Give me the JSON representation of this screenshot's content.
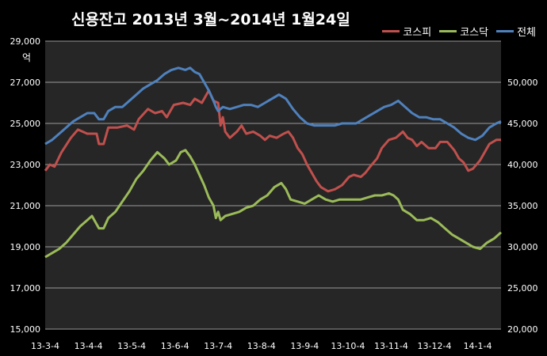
{
  "title": "신용잔고 2013년 3월~2014년 1월24일",
  "unit_label": "억",
  "legend": [
    {
      "name": "코스피",
      "color": "#c0504d"
    },
    {
      "name": "코스닥",
      "color": "#9bbb59"
    },
    {
      "name": "전체",
      "color": "#4f81bd"
    }
  ],
  "chart_data": {
    "type": "line",
    "title": "신용잔고 2013년 3월~2014년 1월24일",
    "x_tick_labels": [
      "13-3-4",
      "13-4-4",
      "13-5-4",
      "13-6-4",
      "13-7-4",
      "13-8-4",
      "13-9-4",
      "13-10-4",
      "13-11-4",
      "13-12-4",
      "14-1-4"
    ],
    "y_left": {
      "unit": "억",
      "range": [
        15000,
        29000
      ],
      "ticks": [
        "15,000",
        "17,000",
        "19,000",
        "21,000",
        "23,000",
        "25,000",
        "27,000",
        "29,000"
      ]
    },
    "y_right": {
      "range": [
        20000,
        55000
      ],
      "ticks": [
        "20,000",
        "25,000",
        "30,000",
        "35,000",
        "40,000",
        "45,000",
        "50,000"
      ]
    },
    "grid": true,
    "legend_position": "top-right",
    "series": [
      {
        "name": "코스피",
        "axis": "left",
        "color": "#c0504d",
        "points": [
          [
            0,
            22700
          ],
          [
            2,
            23000
          ],
          [
            4,
            22900
          ],
          [
            7,
            23600
          ],
          [
            11,
            24300
          ],
          [
            14,
            24700
          ],
          [
            18,
            24500
          ],
          [
            22,
            24500
          ],
          [
            23,
            24000
          ],
          [
            25,
            24000
          ],
          [
            27,
            24800
          ],
          [
            31,
            24800
          ],
          [
            35,
            24900
          ],
          [
            38,
            24700
          ],
          [
            40,
            25200
          ],
          [
            44,
            25700
          ],
          [
            47,
            25500
          ],
          [
            50,
            25600
          ],
          [
            52,
            25300
          ],
          [
            55,
            25900
          ],
          [
            59,
            26000
          ],
          [
            62,
            25900
          ],
          [
            64,
            26200
          ],
          [
            67,
            26000
          ],
          [
            70,
            26600
          ],
          [
            72,
            26100
          ],
          [
            74,
            26000
          ],
          [
            75,
            24900
          ],
          [
            76,
            25300
          ],
          [
            77,
            24600
          ],
          [
            79,
            24300
          ],
          [
            82,
            24600
          ],
          [
            84,
            24900
          ],
          [
            86,
            24500
          ],
          [
            89,
            24600
          ],
          [
            92,
            24400
          ],
          [
            94,
            24200
          ],
          [
            96,
            24400
          ],
          [
            99,
            24300
          ],
          [
            102,
            24500
          ],
          [
            104,
            24600
          ],
          [
            106,
            24300
          ],
          [
            108,
            23800
          ],
          [
            110,
            23500
          ],
          [
            112,
            23000
          ],
          [
            114,
            22600
          ],
          [
            116,
            22200
          ],
          [
            118,
            21900
          ],
          [
            121,
            21700
          ],
          [
            124,
            21800
          ],
          [
            127,
            22000
          ],
          [
            130,
            22400
          ],
          [
            132,
            22500
          ],
          [
            135,
            22400
          ],
          [
            137,
            22600
          ],
          [
            139,
            22900
          ],
          [
            142,
            23300
          ],
          [
            144,
            23800
          ],
          [
            147,
            24200
          ],
          [
            150,
            24300
          ],
          [
            153,
            24600
          ],
          [
            155,
            24300
          ],
          [
            157,
            24200
          ],
          [
            159,
            23900
          ],
          [
            161,
            24100
          ],
          [
            164,
            23800
          ],
          [
            167,
            23800
          ],
          [
            169,
            24100
          ],
          [
            172,
            24100
          ],
          [
            175,
            23700
          ],
          [
            177,
            23300
          ],
          [
            179,
            23100
          ],
          [
            181,
            22700
          ],
          [
            183,
            22800
          ],
          [
            186,
            23200
          ],
          [
            188,
            23600
          ],
          [
            190,
            24000
          ],
          [
            193,
            24200
          ],
          [
            195,
            24200
          ]
        ]
      },
      {
        "name": "코스닥",
        "axis": "left",
        "color": "#9bbb59",
        "points": [
          [
            0,
            18500
          ],
          [
            3,
            18700
          ],
          [
            6,
            18900
          ],
          [
            9,
            19200
          ],
          [
            12,
            19600
          ],
          [
            15,
            20000
          ],
          [
            18,
            20300
          ],
          [
            20,
            20500
          ],
          [
            23,
            19900
          ],
          [
            25,
            19900
          ],
          [
            27,
            20400
          ],
          [
            30,
            20700
          ],
          [
            33,
            21200
          ],
          [
            36,
            21700
          ],
          [
            39,
            22300
          ],
          [
            42,
            22700
          ],
          [
            45,
            23200
          ],
          [
            48,
            23600
          ],
          [
            51,
            23300
          ],
          [
            53,
            23000
          ],
          [
            56,
            23200
          ],
          [
            58,
            23600
          ],
          [
            60,
            23700
          ],
          [
            62,
            23400
          ],
          [
            64,
            23000
          ],
          [
            66,
            22500
          ],
          [
            68,
            22000
          ],
          [
            70,
            21400
          ],
          [
            72,
            21000
          ],
          [
            73,
            20400
          ],
          [
            74,
            20700
          ],
          [
            75,
            20300
          ],
          [
            77,
            20500
          ],
          [
            80,
            20600
          ],
          [
            83,
            20700
          ],
          [
            86,
            20900
          ],
          [
            89,
            21000
          ],
          [
            92,
            21300
          ],
          [
            95,
            21500
          ],
          [
            98,
            21900
          ],
          [
            101,
            22100
          ],
          [
            103,
            21800
          ],
          [
            105,
            21300
          ],
          [
            108,
            21200
          ],
          [
            111,
            21100
          ],
          [
            114,
            21300
          ],
          [
            117,
            21500
          ],
          [
            120,
            21300
          ],
          [
            123,
            21200
          ],
          [
            126,
            21300
          ],
          [
            129,
            21300
          ],
          [
            132,
            21300
          ],
          [
            135,
            21300
          ],
          [
            138,
            21400
          ],
          [
            141,
            21500
          ],
          [
            144,
            21500
          ],
          [
            147,
            21600
          ],
          [
            149,
            21500
          ],
          [
            151,
            21300
          ],
          [
            153,
            20800
          ],
          [
            156,
            20600
          ],
          [
            159,
            20300
          ],
          [
            162,
            20300
          ],
          [
            165,
            20400
          ],
          [
            168,
            20200
          ],
          [
            171,
            19900
          ],
          [
            174,
            19600
          ],
          [
            177,
            19400
          ],
          [
            180,
            19200
          ],
          [
            183,
            19000
          ],
          [
            186,
            18900
          ],
          [
            189,
            19200
          ],
          [
            192,
            19400
          ],
          [
            195,
            19700
          ]
        ]
      },
      {
        "name": "전체",
        "axis": "left",
        "color": "#4f81bd",
        "points": [
          [
            0,
            24000
          ],
          [
            3,
            24200
          ],
          [
            6,
            24500
          ],
          [
            9,
            24800
          ],
          [
            12,
            25100
          ],
          [
            15,
            25300
          ],
          [
            18,
            25500
          ],
          [
            21,
            25500
          ],
          [
            23,
            25200
          ],
          [
            25,
            25200
          ],
          [
            27,
            25600
          ],
          [
            30,
            25800
          ],
          [
            33,
            25800
          ],
          [
            36,
            26100
          ],
          [
            39,
            26400
          ],
          [
            42,
            26700
          ],
          [
            45,
            26900
          ],
          [
            48,
            27100
          ],
          [
            51,
            27400
          ],
          [
            54,
            27600
          ],
          [
            57,
            27700
          ],
          [
            60,
            27600
          ],
          [
            62,
            27700
          ],
          [
            64,
            27500
          ],
          [
            66,
            27400
          ],
          [
            68,
            27000
          ],
          [
            70,
            26600
          ],
          [
            72,
            26100
          ],
          [
            73,
            25800
          ],
          [
            74,
            25600
          ],
          [
            76,
            25800
          ],
          [
            79,
            25700
          ],
          [
            82,
            25800
          ],
          [
            85,
            25900
          ],
          [
            88,
            25900
          ],
          [
            91,
            25800
          ],
          [
            94,
            26000
          ],
          [
            97,
            26200
          ],
          [
            100,
            26400
          ],
          [
            103,
            26200
          ],
          [
            106,
            25700
          ],
          [
            109,
            25300
          ],
          [
            112,
            25000
          ],
          [
            115,
            24900
          ],
          [
            118,
            24900
          ],
          [
            121,
            24900
          ],
          [
            124,
            24900
          ],
          [
            127,
            25000
          ],
          [
            130,
            25000
          ],
          [
            133,
            25000
          ],
          [
            136,
            25200
          ],
          [
            139,
            25400
          ],
          [
            142,
            25600
          ],
          [
            145,
            25800
          ],
          [
            148,
            25900
          ],
          [
            151,
            26100
          ],
          [
            154,
            25800
          ],
          [
            157,
            25500
          ],
          [
            160,
            25300
          ],
          [
            163,
            25300
          ],
          [
            166,
            25200
          ],
          [
            169,
            25200
          ],
          [
            172,
            25000
          ],
          [
            175,
            24800
          ],
          [
            178,
            24500
          ],
          [
            181,
            24300
          ],
          [
            184,
            24200
          ],
          [
            187,
            24400
          ],
          [
            190,
            24800
          ],
          [
            193,
            25000
          ],
          [
            195,
            25100
          ]
        ]
      }
    ]
  }
}
